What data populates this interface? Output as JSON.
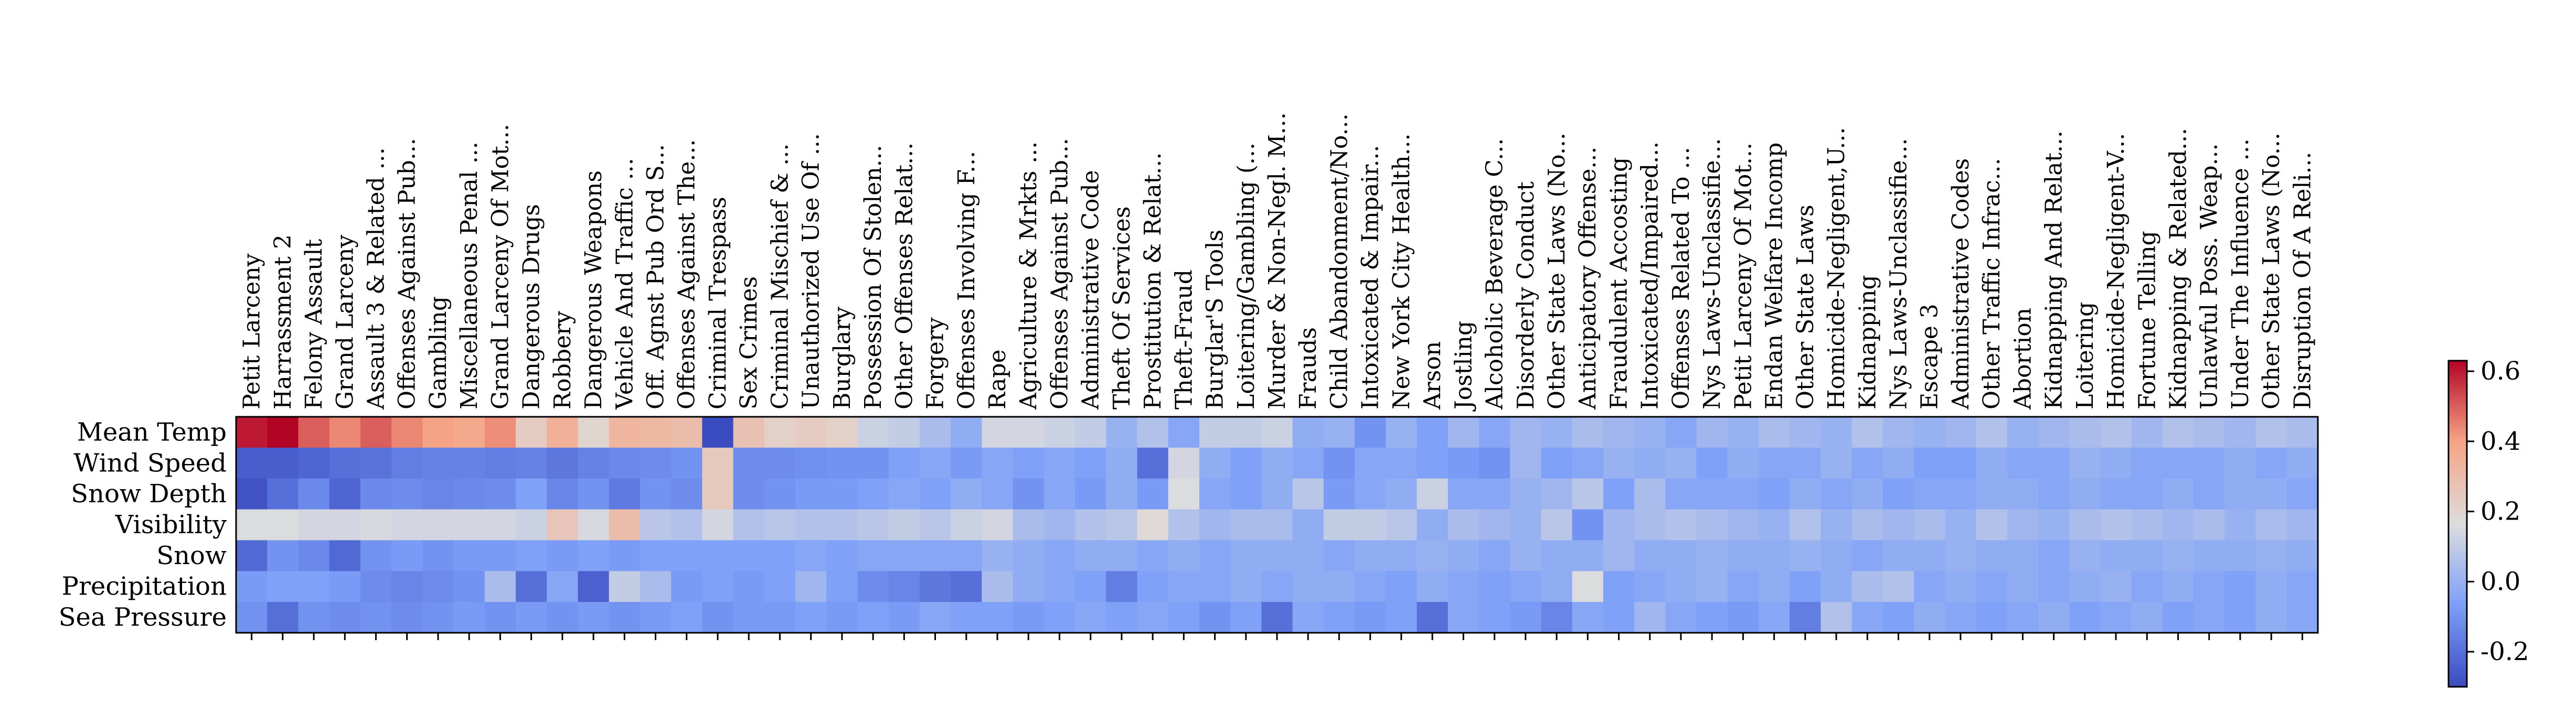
{
  "chart_data": {
    "type": "heatmap",
    "title": "",
    "xlabel": "",
    "ylabel": "",
    "rows": [
      "Mean Temp",
      "Wind Speed",
      "Snow Depth",
      "Visibility",
      "Snow",
      "Precipitation",
      "Sea Pressure"
    ],
    "columns": [
      "Petit Larceny",
      "Harrassment 2",
      "Felony Assault",
      "Grand Larceny",
      "Assault 3 & Related ...",
      "Offenses Against Pub...",
      "Gambling",
      "Miscellaneous Penal ...",
      "Grand Larceny Of Mot...",
      "Dangerous Drugs",
      "Robbery",
      "Dangerous Weapons",
      "Vehicle And Traffic ...",
      "Off. Agnst Pub Ord S...",
      "Offenses Against The...",
      "Criminal Trespass",
      "Sex Crimes",
      "Criminal Mischief & ...",
      "Unauthorized Use Of ...",
      "Burglary",
      "Possession Of Stolen...",
      "Other Offenses Relat...",
      "Forgery",
      "Offenses Involving F...",
      "Rape",
      "Agriculture & Mrkts ...",
      "Offenses Against Pub...",
      "Administrative Code",
      "Theft Of Services",
      "Prostitution & Relat...",
      "Theft-Fraud",
      "Burglar'S Tools",
      "Loitering/Gambling (...",
      "Murder & Non-Negl. M...",
      "Frauds",
      "Child Abandonment/No...",
      "Intoxicated & Impair...",
      "New York City Health...",
      "Arson",
      "Jostling",
      "Alcoholic Beverage C...",
      "Disorderly Conduct",
      "Other State Laws (No...",
      "Anticipatory Offense...",
      "Fraudulent Accosting",
      "Intoxicated/Impaired...",
      "Offenses Related To ...",
      "Nys Laws-Unclassifie...",
      "Petit Larceny Of Mot...",
      "Endan Welfare Incomp",
      "Other State Laws",
      "Homicide-Negligent,U...",
      "Kidnapping",
      "Nys Laws-Unclassifie...",
      "Escape 3",
      "Administrative Codes",
      "Other Traffic Infrac...",
      "Abortion",
      "Kidnapping And Relat...",
      "Loitering",
      "Homicide-Negligent-V...",
      "Fortune Telling",
      "Kidnapping & Related...",
      "Unlawful Poss. Weap...",
      "Under The Influence ...",
      "Other State Laws (No...",
      "Disruption Of A Reli..."
    ],
    "values": [
      [
        0.6,
        0.66,
        0.5,
        0.44,
        0.5,
        0.44,
        0.4,
        0.38,
        0.43,
        0.24,
        0.35,
        0.2,
        0.33,
        0.32,
        0.3,
        -0.3,
        0.28,
        0.22,
        0.24,
        0.22,
        0.12,
        0.1,
        0.04,
        -0.02,
        0.14,
        0.14,
        0.12,
        0.1,
        0.0,
        0.06,
        -0.04,
        0.1,
        0.1,
        0.12,
        -0.02,
        0.0,
        -0.1,
        0.0,
        -0.06,
        0.02,
        -0.04,
        0.02,
        0.0,
        0.04,
        0.02,
        0.0,
        -0.04,
        0.02,
        0.0,
        0.04,
        0.02,
        0.0,
        0.06,
        0.02,
        0.0,
        0.02,
        0.06,
        0.0,
        0.02,
        0.04,
        0.06,
        0.02,
        0.06,
        0.04,
        0.02,
        0.06,
        0.04
      ],
      [
        -0.25,
        -0.25,
        -0.23,
        -0.2,
        -0.19,
        -0.16,
        -0.15,
        -0.15,
        -0.16,
        -0.15,
        -0.18,
        -0.15,
        -0.13,
        -0.12,
        -0.1,
        0.25,
        -0.12,
        -0.12,
        -0.11,
        -0.1,
        -0.1,
        -0.06,
        -0.04,
        -0.08,
        -0.04,
        -0.06,
        -0.04,
        -0.06,
        -0.02,
        -0.2,
        0.14,
        -0.02,
        -0.06,
        -0.02,
        -0.04,
        -0.1,
        -0.04,
        -0.04,
        -0.06,
        -0.08,
        -0.1,
        0.02,
        -0.06,
        -0.04,
        0.0,
        -0.02,
        0.0,
        -0.06,
        -0.02,
        -0.04,
        -0.04,
        0.0,
        -0.04,
        -0.02,
        -0.06,
        -0.06,
        -0.02,
        -0.04,
        -0.04,
        0.0,
        -0.02,
        -0.04,
        -0.04,
        -0.04,
        -0.02,
        -0.04,
        -0.02
      ],
      [
        -0.28,
        -0.2,
        -0.13,
        -0.23,
        -0.13,
        -0.12,
        -0.14,
        -0.13,
        -0.12,
        -0.06,
        -0.14,
        -0.1,
        -0.17,
        -0.1,
        -0.12,
        0.25,
        -0.12,
        -0.1,
        -0.08,
        -0.08,
        -0.06,
        -0.04,
        -0.06,
        -0.02,
        -0.04,
        -0.1,
        -0.04,
        -0.08,
        -0.02,
        -0.08,
        0.16,
        -0.04,
        -0.06,
        -0.02,
        0.08,
        -0.08,
        -0.04,
        -0.02,
        0.12,
        -0.04,
        -0.04,
        0.0,
        0.02,
        0.08,
        -0.06,
        0.04,
        -0.04,
        -0.04,
        -0.04,
        -0.06,
        -0.02,
        -0.04,
        -0.02,
        -0.06,
        -0.04,
        -0.04,
        -0.02,
        -0.02,
        -0.04,
        -0.02,
        -0.04,
        -0.04,
        -0.02,
        -0.04,
        -0.02,
        -0.02,
        -0.04
      ],
      [
        0.16,
        0.16,
        0.14,
        0.14,
        0.15,
        0.14,
        0.14,
        0.14,
        0.14,
        0.12,
        0.26,
        0.15,
        0.3,
        0.08,
        0.06,
        0.14,
        0.06,
        0.08,
        0.06,
        0.06,
        0.08,
        0.1,
        0.08,
        0.12,
        0.14,
        0.04,
        0.02,
        0.06,
        0.08,
        0.18,
        0.06,
        0.02,
        0.04,
        0.04,
        -0.02,
        0.1,
        0.1,
        0.08,
        -0.02,
        0.04,
        0.02,
        0.0,
        0.08,
        -0.1,
        0.02,
        0.04,
        0.06,
        0.04,
        0.02,
        0.0,
        0.06,
        0.0,
        0.04,
        0.02,
        0.04,
        0.0,
        0.06,
        0.02,
        0.0,
        0.04,
        0.06,
        0.04,
        0.02,
        0.04,
        0.0,
        0.04,
        0.02
      ],
      [
        -0.22,
        -0.1,
        -0.13,
        -0.22,
        -0.1,
        -0.08,
        -0.1,
        -0.08,
        -0.08,
        -0.06,
        -0.08,
        -0.06,
        -0.08,
        -0.06,
        -0.06,
        -0.06,
        -0.06,
        -0.06,
        -0.04,
        -0.06,
        -0.04,
        -0.04,
        -0.04,
        -0.04,
        0.0,
        -0.02,
        -0.04,
        -0.02,
        -0.02,
        -0.04,
        -0.02,
        -0.04,
        -0.02,
        -0.02,
        -0.02,
        -0.04,
        -0.02,
        -0.02,
        0.0,
        -0.02,
        -0.04,
        0.0,
        -0.02,
        -0.02,
        0.02,
        -0.02,
        -0.02,
        0.0,
        -0.02,
        -0.02,
        0.0,
        -0.02,
        -0.04,
        -0.02,
        -0.02,
        0.0,
        -0.02,
        -0.02,
        -0.04,
        0.0,
        -0.02,
        -0.02,
        0.0,
        -0.02,
        -0.02,
        0.0,
        -0.02
      ],
      [
        -0.08,
        -0.06,
        -0.06,
        -0.08,
        -0.12,
        -0.14,
        -0.12,
        -0.1,
        0.04,
        -0.2,
        -0.04,
        -0.24,
        0.1,
        0.04,
        -0.08,
        -0.06,
        -0.08,
        -0.06,
        0.02,
        -0.06,
        -0.12,
        -0.14,
        -0.18,
        -0.2,
        0.04,
        -0.02,
        -0.04,
        -0.06,
        -0.16,
        -0.06,
        -0.04,
        -0.04,
        -0.02,
        -0.04,
        -0.02,
        -0.02,
        -0.04,
        -0.06,
        -0.02,
        -0.04,
        -0.06,
        -0.04,
        -0.02,
        0.16,
        -0.06,
        -0.04,
        -0.02,
        0.0,
        -0.04,
        -0.02,
        -0.06,
        -0.02,
        0.04,
        0.06,
        -0.04,
        -0.02,
        -0.04,
        -0.02,
        -0.04,
        -0.02,
        0.0,
        -0.04,
        -0.02,
        -0.04,
        -0.06,
        -0.02,
        -0.04
      ],
      [
        -0.1,
        -0.2,
        -0.1,
        -0.12,
        -0.1,
        -0.12,
        -0.1,
        -0.08,
        -0.1,
        -0.08,
        -0.1,
        -0.08,
        -0.1,
        -0.08,
        -0.06,
        -0.1,
        -0.08,
        -0.08,
        -0.06,
        -0.08,
        -0.06,
        -0.08,
        -0.04,
        -0.06,
        -0.06,
        -0.08,
        -0.06,
        -0.04,
        -0.06,
        -0.04,
        -0.06,
        -0.1,
        -0.06,
        -0.2,
        -0.04,
        -0.06,
        -0.08,
        -0.06,
        -0.2,
        -0.04,
        -0.06,
        -0.08,
        -0.14,
        -0.04,
        -0.06,
        0.02,
        -0.04,
        -0.06,
        -0.08,
        -0.04,
        -0.16,
        0.06,
        -0.04,
        -0.06,
        -0.02,
        -0.04,
        -0.06,
        -0.04,
        -0.02,
        -0.06,
        -0.04,
        -0.02,
        -0.06,
        -0.04,
        -0.06,
        -0.02,
        -0.04
      ]
    ],
    "colorbar": {
      "colormap": "coolwarm",
      "range": [
        -0.3,
        0.63
      ],
      "ticks": [
        "-0.2",
        "0.0",
        "0.2",
        "0.4",
        "0.6"
      ]
    },
    "grid": false
  }
}
